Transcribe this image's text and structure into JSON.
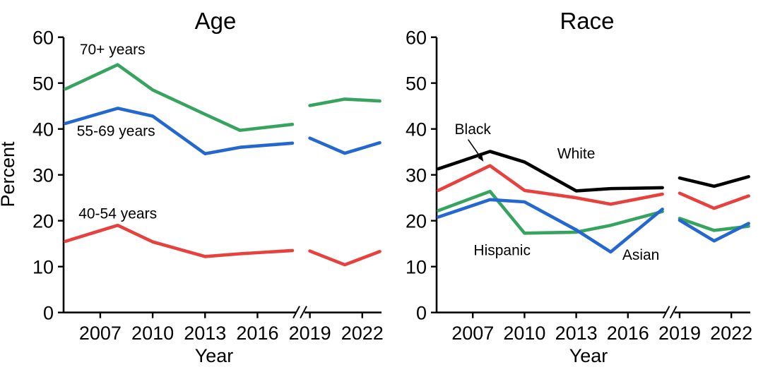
{
  "figure": {
    "background": "#ffffff",
    "axis_color": "#000000",
    "x_axis_label": "Year",
    "y_axis_label": "Percent"
  },
  "chart_data": [
    {
      "type": "line",
      "title": "Age",
      "xlabel": "Year",
      "ylabel": "Percent",
      "x": [
        2005,
        2008,
        2010,
        2013,
        2015,
        2018,
        2019,
        2021,
        2023
      ],
      "x_ticks": [
        2007,
        2010,
        2013,
        2016,
        2019,
        2022
      ],
      "y_ticks": [
        0,
        10,
        20,
        30,
        40,
        50,
        60
      ],
      "ylim": [
        0,
        60
      ],
      "grid": false,
      "axis_break": {
        "between": [
          2018,
          2019
        ],
        "symbol": "//"
      },
      "series": [
        {
          "name": "70+ years",
          "color": "#36A45E",
          "values": [
            48.7,
            54.0,
            48.5,
            43.2,
            39.7,
            41.0,
            45.1,
            46.5,
            46.1
          ]
        },
        {
          "name": "55-69 years",
          "color": "#2268D0",
          "values": [
            41.2,
            44.5,
            42.8,
            34.6,
            36.0,
            36.9,
            38.0,
            34.7,
            37.0
          ]
        },
        {
          "name": "40-54 years",
          "color": "#E8413D",
          "values": [
            15.5,
            19.0,
            15.4,
            12.2,
            12.8,
            13.5,
            13.4,
            10.4,
            13.3
          ]
        }
      ],
      "annotations": [
        {
          "text": "70+ years",
          "x": 2007.7,
          "y": 57.3
        },
        {
          "text": "55-69 years",
          "x": 2007.9,
          "y": 39.5
        },
        {
          "text": "40-54 years",
          "x": 2008.0,
          "y": 21.5
        }
      ]
    },
    {
      "type": "line",
      "title": "Race",
      "xlabel": "Year",
      "ylabel": "",
      "x": [
        2005,
        2008,
        2010,
        2013,
        2015,
        2018,
        2019,
        2021,
        2023
      ],
      "x_ticks": [
        2007,
        2010,
        2013,
        2016,
        2019,
        2022
      ],
      "y_ticks": [
        0,
        10,
        20,
        30,
        40,
        50,
        60
      ],
      "ylim": [
        0,
        60
      ],
      "grid": false,
      "axis_break": {
        "between": [
          2018,
          2019
        ],
        "symbol": "//"
      },
      "series": [
        {
          "name": "White",
          "color": "#000000",
          "values": [
            31.3,
            35.1,
            32.8,
            26.5,
            27.0,
            27.2,
            29.3,
            27.5,
            29.6
          ]
        },
        {
          "name": "Black",
          "color": "#E8413D",
          "values": [
            26.6,
            32.0,
            26.6,
            25.0,
            23.6,
            25.8,
            26.0,
            22.7,
            25.4
          ]
        },
        {
          "name": "Hispanic",
          "color": "#36A45E",
          "values": [
            22.2,
            26.4,
            17.3,
            17.5,
            19.0,
            22.0,
            20.5,
            17.9,
            18.8
          ]
        },
        {
          "name": "Asian",
          "color": "#2268D0",
          "values": [
            20.8,
            24.6,
            24.1,
            18.0,
            13.2,
            22.5,
            20.1,
            15.6,
            19.4
          ]
        }
      ],
      "annotations": [
        {
          "text": "Black",
          "x": 2007.0,
          "y": 39.9,
          "arrow": {
            "from_x": 2006.73,
            "from_y": 37.7,
            "to_x": 2007.62,
            "to_y": 32.9
          }
        },
        {
          "text": "White",
          "x": 2013.0,
          "y": 34.6
        },
        {
          "text": "Hispanic",
          "x": 2008.7,
          "y": 13.5
        },
        {
          "text": "Asian",
          "x": 2016.75,
          "y": 12.5
        }
      ]
    }
  ]
}
